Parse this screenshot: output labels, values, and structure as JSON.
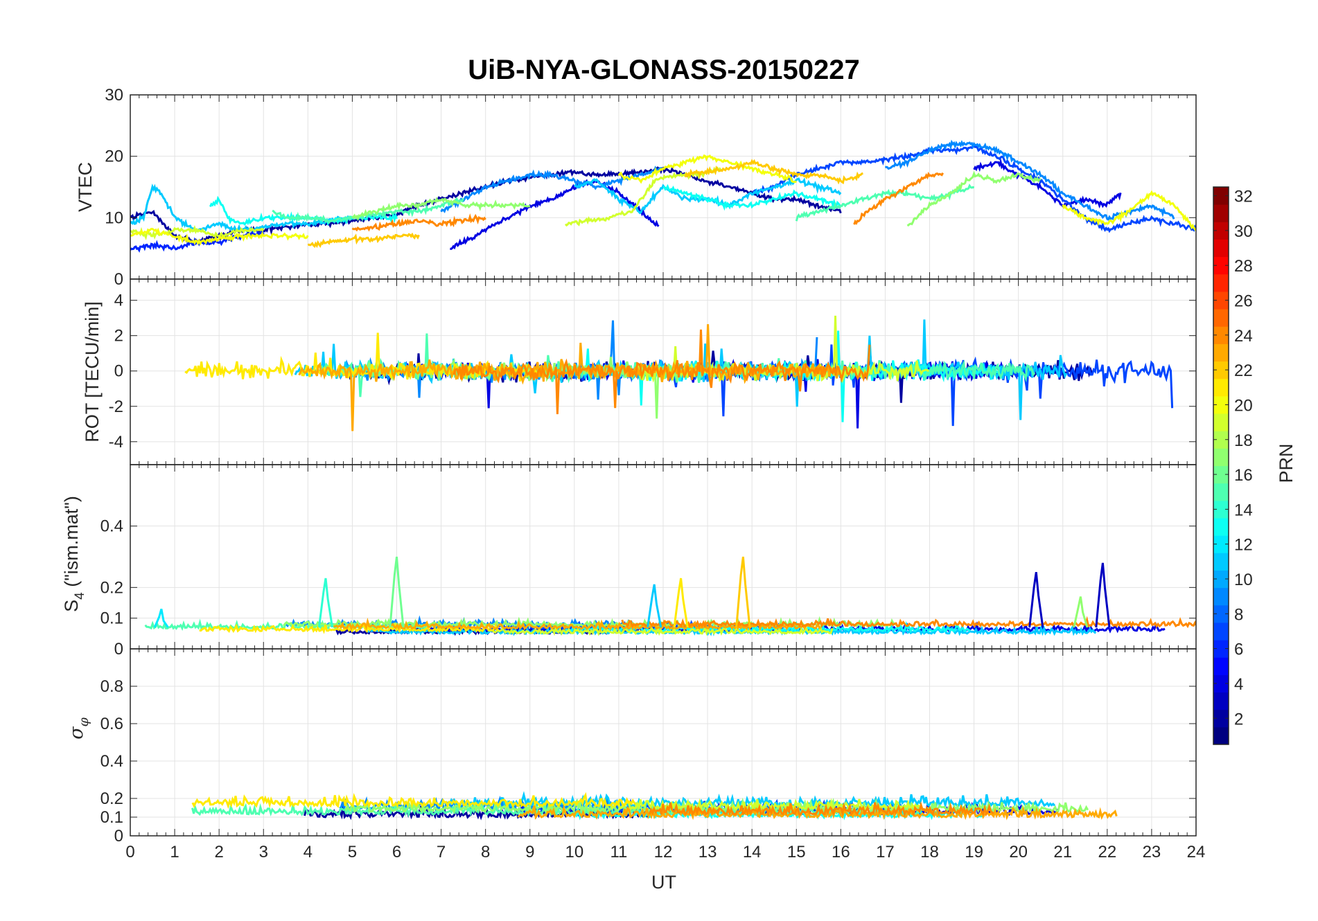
{
  "chart_data": {
    "type": "line",
    "title": "UiB-NYA-GLONASS-20150227",
    "xlabel": "UT",
    "xlim": [
      0,
      24
    ],
    "xticks": [
      "0",
      "1",
      "2",
      "3",
      "4",
      "5",
      "6",
      "7",
      "8",
      "9",
      "10",
      "11",
      "12",
      "13",
      "14",
      "15",
      "16",
      "17",
      "18",
      "19",
      "20",
      "21",
      "22",
      "23",
      "24"
    ],
    "grid": true,
    "colorbar": {
      "label": "PRN",
      "colormap": "jet",
      "range": [
        1,
        32
      ],
      "ticks": [
        "2",
        "4",
        "6",
        "8",
        "10",
        "12",
        "14",
        "16",
        "18",
        "20",
        "22",
        "24",
        "26",
        "28",
        "30",
        "32"
      ]
    },
    "panels": [
      {
        "ylabel": "VTEC",
        "ylim": [
          0,
          30
        ],
        "yticks": [
          "0",
          "10",
          "20",
          "30"
        ],
        "series": [
          {
            "prn": 2,
            "x": [
              0,
              0.5,
              1,
              1.5,
              2,
              2.5,
              3,
              3.5,
              4,
              4.5,
              5,
              5.5,
              6,
              6.5,
              7,
              7.5,
              8,
              8.5,
              9,
              9.5,
              10,
              10.5,
              11,
              11.5,
              12,
              12.5,
              13,
              13.5,
              14,
              14.5,
              15,
              15.5,
              16
            ],
            "y": [
              10,
              11,
              7,
              6,
              7,
              8,
              8,
              8.5,
              9,
              9,
              9.5,
              10,
              10.5,
              12,
              13,
              14,
              15,
              16,
              16.5,
              17,
              17.5,
              17,
              17,
              17.5,
              18,
              17,
              16,
              15,
              14,
              13,
              13,
              12,
              11
            ]
          },
          {
            "prn": 4,
            "x": [
              7.2,
              7.5,
              8,
              8.5,
              9,
              9.5,
              10,
              10.5,
              11,
              11.5,
              11.9
            ],
            "y": [
              5,
              6,
              8,
              10,
              12,
              13,
              15,
              16,
              14,
              11,
              8.5
            ]
          },
          {
            "prn": 4,
            "x": [
              19,
              19.5,
              20,
              20.5,
              21,
              21.5,
              22,
              22.3
            ],
            "y": [
              18,
              19,
              17,
              15,
              12,
              13,
              12,
              14
            ]
          },
          {
            "prn": 6,
            "x": [
              0,
              0.5,
              1,
              1.5,
              2,
              2.5,
              3
            ],
            "y": [
              5,
              5.5,
              5,
              6,
              6,
              7,
              7.5
            ]
          },
          {
            "prn": 7,
            "x": [
              14,
              14.5,
              15,
              15.5,
              16,
              16.5,
              17,
              17.5,
              18,
              18.5,
              19,
              19.5,
              20,
              20.5,
              21,
              21.5,
              22,
              22.5,
              23,
              23.5,
              24
            ],
            "y": [
              14,
              15,
              17,
              18,
              19,
              19,
              19.5,
              20,
              21,
              21,
              21.5,
              20,
              18,
              16,
              13,
              10,
              8,
              9,
              10,
              9,
              8
            ]
          },
          {
            "prn": 9,
            "x": [
              7,
              7.5,
              8,
              8.5,
              9,
              9.5,
              10,
              10.5,
              11,
              11.5,
              12
            ],
            "y": [
              11,
              13,
              15,
              16,
              17,
              17,
              16,
              15,
              16,
              17,
              18
            ]
          },
          {
            "prn": 9,
            "x": [
              17,
              17.5,
              18,
              18.5,
              19,
              19.5,
              20,
              20.5,
              21,
              21.5,
              22,
              22.5,
              23,
              23.5
            ],
            "y": [
              18,
              19,
              21,
              22,
              22,
              21,
              19,
              17,
              14,
              12,
              10,
              11,
              12,
              10
            ]
          },
          {
            "prn": 11,
            "x": [
              0,
              0.3,
              0.5,
              0.7,
              1,
              1.5,
              2,
              2.5,
              3,
              3.5,
              4,
              4.5,
              5
            ],
            "y": [
              9,
              10,
              15,
              14,
              10,
              8,
              9,
              8,
              8.5,
              9,
              9,
              9.5,
              10
            ]
          },
          {
            "prn": 11,
            "x": [
              10,
              10.5,
              11,
              11.5,
              12,
              12.5,
              13,
              13.5,
              14,
              14.5,
              15,
              15.5,
              16
            ],
            "y": [
              15,
              16,
              13,
              11,
              15,
              13,
              13,
              12,
              14,
              15,
              16,
              15,
              14
            ]
          },
          {
            "prn": 13,
            "x": [
              1.8,
              2,
              2.2,
              2.5,
              3,
              3.5,
              4,
              4.5,
              5,
              5.5,
              6
            ],
            "y": [
              12,
              13,
              10,
              9,
              10,
              10,
              10,
              9.5,
              10,
              10,
              10
            ]
          },
          {
            "prn": 13,
            "x": [
              12,
              12.5,
              13,
              13.5,
              14,
              14.5,
              15,
              15.5,
              16
            ],
            "y": [
              15,
              14,
              13,
              12,
              12,
              13,
              14,
              13,
              12
            ]
          },
          {
            "prn": 15,
            "x": [
              3.2,
              3.5,
              4,
              4.5,
              5,
              5.5,
              6,
              6.5,
              7,
              7.5
            ],
            "y": [
              11,
              10,
              10,
              9.5,
              10,
              10.5,
              11,
              11,
              12,
              13
            ]
          },
          {
            "prn": 15,
            "x": [
              15,
              15.5,
              16,
              16.5,
              17,
              17.5,
              18,
              18.5,
              19
            ],
            "y": [
              10,
              11,
              12,
              13,
              14,
              14,
              13,
              14,
              15
            ]
          },
          {
            "prn": 17,
            "x": [
              5,
              5.5,
              6,
              6.5,
              7,
              7.5,
              8,
              8.5,
              9
            ],
            "y": [
              10,
              11,
              12,
              12,
              13,
              12,
              12,
              12,
              12
            ]
          },
          {
            "prn": 17,
            "x": [
              17.5,
              18,
              18.5,
              19,
              19.5,
              20,
              20.5
            ],
            "y": [
              8.5,
              12,
              14,
              17,
              16,
              17,
              16
            ]
          },
          {
            "prn": 19,
            "x": [
              0,
              0.5,
              1,
              1.5,
              2,
              2.5,
              3
            ],
            "y": [
              8,
              7,
              8,
              8,
              7,
              8,
              8
            ]
          },
          {
            "prn": 19,
            "x": [
              9.8,
              10.3,
              10.8,
              11.3,
              11.8,
              12.3,
              12.8,
              13.3
            ],
            "y": [
              9,
              9.5,
              10,
              11,
              16,
              17,
              17,
              18
            ]
          },
          {
            "prn": 20,
            "x": [
              0,
              0.5,
              1,
              1.5,
              2,
              2.5,
              3,
              3.5,
              4
            ],
            "y": [
              7,
              8,
              7,
              6,
              6.5,
              7,
              7,
              7,
              7
            ]
          },
          {
            "prn": 20,
            "x": [
              11,
              11.5,
              12,
              12.5,
              13,
              13.5,
              14,
              14.5,
              15
            ],
            "y": [
              17,
              16,
              18,
              19,
              20,
              19,
              18,
              17,
              16
            ]
          },
          {
            "prn": 20,
            "x": [
              21,
              21.5,
              22,
              22.5,
              23,
              23.5,
              24
            ],
            "y": [
              12,
              10,
              9,
              11,
              14,
              12,
              8
            ]
          },
          {
            "prn": 22,
            "x": [
              4,
              4.5,
              5,
              5.5,
              6,
              6.5
            ],
            "y": [
              5.5,
              6,
              6.5,
              6.5,
              7,
              7
            ]
          },
          {
            "prn": 22,
            "x": [
              12.5,
              13,
              13.5,
              14,
              14.5,
              15,
              15.5,
              16,
              16.5
            ],
            "y": [
              17,
              17.5,
              18,
              19,
              18,
              17,
              17,
              16,
              17
            ]
          },
          {
            "prn": 24,
            "x": [
              5,
              5.5,
              6,
              6.5,
              7,
              7.5,
              8
            ],
            "y": [
              8,
              8.5,
              9,
              9.5,
              9,
              9.5,
              10
            ]
          },
          {
            "prn": 24,
            "x": [
              16.3,
              16.6,
              17,
              17.5,
              18,
              18.3
            ],
            "y": [
              9,
              11,
              13,
              15,
              17,
              17
            ]
          }
        ]
      },
      {
        "ylabel": "ROT [TECU/min]",
        "ylim": [
          -5.3,
          5.2
        ],
        "yticks": [
          "-4",
          "-2",
          "0",
          "2",
          "4"
        ]
      },
      {
        "ylabel": "S4 (\"ism.mat\")",
        "ylabel_main": "S",
        "ylabel_sub": "4",
        "ylabel_rest": " (\"ism.mat\")",
        "ylim": [
          0,
          0.6
        ],
        "yticks": [
          "0",
          "0.1",
          "0.2",
          "0.4"
        ],
        "peaks": [
          {
            "prn": 12,
            "x": 0.7,
            "y": 0.13
          },
          {
            "prn": 14,
            "x": 4.4,
            "y": 0.23
          },
          {
            "prn": 16,
            "x": 6.0,
            "y": 0.3
          },
          {
            "prn": 11,
            "x": 11.8,
            "y": 0.21
          },
          {
            "prn": 21,
            "x": 12.4,
            "y": 0.23
          },
          {
            "prn": 22,
            "x": 13.8,
            "y": 0.3
          },
          {
            "prn": 3,
            "x": 20.4,
            "y": 0.25
          },
          {
            "prn": 17,
            "x": 21.4,
            "y": 0.17
          },
          {
            "prn": 3,
            "x": 21.9,
            "y": 0.28
          }
        ]
      },
      {
        "ylabel": "σφ",
        "ylabel_main": "σ",
        "ylabel_sub": "φ",
        "ylim": [
          0,
          1
        ],
        "yticks": [
          "0",
          "0.1",
          "0.2",
          "0.4",
          "0.6",
          "0.8"
        ]
      }
    ]
  }
}
